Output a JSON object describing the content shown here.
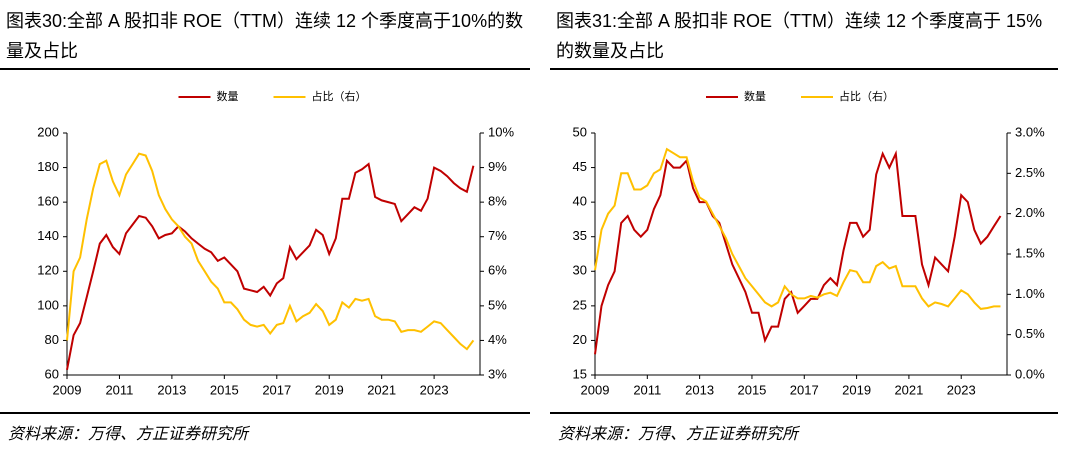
{
  "chart_data": [
    {
      "type": "line",
      "title": "图表30:全部 A 股扣非 ROE（TTM）连续 12 个季度高于10%的数量及占比",
      "source": "资料来源：万得、方正证券研究所",
      "x": [
        2009,
        2009.25,
        2009.5,
        2009.75,
        2010,
        2010.25,
        2010.5,
        2010.75,
        2011,
        2011.25,
        2011.5,
        2011.75,
        2012,
        2012.25,
        2012.5,
        2012.75,
        2013,
        2013.25,
        2013.5,
        2013.75,
        2014,
        2014.25,
        2014.5,
        2014.75,
        2015,
        2015.25,
        2015.5,
        2015.75,
        2016,
        2016.25,
        2016.5,
        2016.75,
        2017,
        2017.25,
        2017.5,
        2017.75,
        2018,
        2018.25,
        2018.5,
        2018.75,
        2019,
        2019.25,
        2019.5,
        2019.75,
        2020,
        2020.25,
        2020.5,
        2020.75,
        2021,
        2021.25,
        2021.5,
        2021.75,
        2022,
        2022.25,
        2022.5,
        2022.75,
        2023,
        2023.25,
        2023.5,
        2023.75,
        2024,
        2024.25,
        2024.5
      ],
      "series": [
        {
          "name": "数量",
          "color": "#c00000",
          "values": [
            63,
            83,
            90,
            105,
            120,
            136,
            141,
            134,
            130,
            142,
            147,
            152,
            151,
            146,
            139,
            141,
            142,
            146,
            143,
            139,
            136,
            133,
            131,
            126,
            128,
            124,
            120,
            110,
            109,
            108,
            111,
            106,
            113,
            116,
            134,
            127,
            131,
            135,
            144,
            141,
            130,
            139,
            162,
            162,
            177,
            179,
            182,
            163,
            161,
            160,
            159,
            149,
            153,
            157,
            155,
            162,
            180,
            178,
            175,
            171,
            168,
            166,
            181
          ]
        },
        {
          "name": "占比（右）",
          "color": "#ffc000",
          "axis": "y2",
          "values": [
            4.0,
            6.0,
            6.4,
            7.5,
            8.4,
            9.1,
            9.2,
            8.6,
            8.2,
            8.8,
            9.1,
            9.4,
            9.35,
            8.9,
            8.2,
            7.8,
            7.5,
            7.3,
            7.0,
            6.8,
            6.3,
            6.0,
            5.7,
            5.5,
            5.1,
            5.1,
            4.9,
            4.6,
            4.45,
            4.4,
            4.45,
            4.2,
            4.45,
            4.5,
            5.0,
            4.55,
            4.7,
            4.8,
            5.05,
            4.85,
            4.45,
            4.6,
            5.1,
            4.95,
            5.2,
            5.15,
            5.2,
            4.7,
            4.6,
            4.6,
            4.55,
            4.25,
            4.3,
            4.3,
            4.25,
            4.4,
            4.55,
            4.5,
            4.3,
            4.1,
            3.9,
            3.75,
            4.0
          ]
        }
      ],
      "xlim": [
        2009,
        2024.75
      ],
      "xticks": [
        2009,
        2011,
        2013,
        2015,
        2017,
        2019,
        2021,
        2023
      ],
      "ylim": [
        60,
        200
      ],
      "yticks": [
        60,
        80,
        100,
        120,
        140,
        160,
        180,
        200
      ],
      "y2lim": [
        3,
        10
      ],
      "y2ticks": [
        {
          "value": 3,
          "label": "3%"
        },
        {
          "value": 4,
          "label": "4%"
        },
        {
          "value": 5,
          "label": "5%"
        },
        {
          "value": 6,
          "label": "6%"
        },
        {
          "value": 7,
          "label": "7%"
        },
        {
          "value": 8,
          "label": "8%"
        },
        {
          "value": 9,
          "label": "9%"
        },
        {
          "value": 10,
          "label": "10%"
        }
      ],
      "legend": "top"
    },
    {
      "type": "line",
      "title": "图表31:全部 A 股扣非 ROE（TTM）连续 12 个季度高于 15%的数量及占比",
      "source": "资料来源：万得、方正证券研究所",
      "x": [
        2009,
        2009.25,
        2009.5,
        2009.75,
        2010,
        2010.25,
        2010.5,
        2010.75,
        2011,
        2011.25,
        2011.5,
        2011.75,
        2012,
        2012.25,
        2012.5,
        2012.75,
        2013,
        2013.25,
        2013.5,
        2013.75,
        2014,
        2014.25,
        2014.5,
        2014.75,
        2015,
        2015.25,
        2015.5,
        2015.75,
        2016,
        2016.25,
        2016.5,
        2016.75,
        2017,
        2017.25,
        2017.5,
        2017.75,
        2018,
        2018.25,
        2018.5,
        2018.75,
        2019,
        2019.25,
        2019.5,
        2019.75,
        2020,
        2020.25,
        2020.5,
        2020.75,
        2021,
        2021.25,
        2021.5,
        2021.75,
        2022,
        2022.25,
        2022.5,
        2022.75,
        2023,
        2023.25,
        2023.5,
        2023.75,
        2024,
        2024.25,
        2024.5
      ],
      "series": [
        {
          "name": "数量",
          "color": "#c00000",
          "values": [
            18,
            25,
            28,
            30,
            37,
            38,
            36,
            35,
            36,
            39,
            41,
            46,
            45,
            45,
            46,
            42,
            40,
            40,
            38,
            37,
            34,
            31,
            29,
            27,
            24,
            24,
            20,
            22,
            22,
            26,
            27,
            24,
            25,
            26,
            26,
            28,
            29,
            28,
            33,
            37,
            37,
            35,
            36,
            44,
            47,
            45,
            47,
            38,
            38,
            38,
            31,
            28,
            32,
            31,
            30,
            35,
            41,
            40,
            36,
            34,
            35,
            36.5,
            38
          ]
        },
        {
          "name": "占比（右）",
          "color": "#ffc000",
          "axis": "y2",
          "values": [
            1.3,
            1.8,
            2.0,
            2.1,
            2.5,
            2.5,
            2.3,
            2.3,
            2.35,
            2.5,
            2.55,
            2.8,
            2.75,
            2.7,
            2.7,
            2.4,
            2.2,
            2.15,
            2.0,
            1.85,
            1.7,
            1.5,
            1.35,
            1.2,
            1.1,
            1.0,
            0.9,
            0.85,
            0.9,
            1.1,
            1.0,
            0.95,
            0.95,
            0.98,
            0.96,
            1.0,
            1.02,
            0.98,
            1.15,
            1.3,
            1.28,
            1.15,
            1.15,
            1.35,
            1.4,
            1.32,
            1.35,
            1.1,
            1.1,
            1.1,
            0.95,
            0.85,
            0.9,
            0.88,
            0.85,
            0.95,
            1.05,
            1.0,
            0.9,
            0.82,
            0.83,
            0.85,
            0.85
          ]
        }
      ],
      "xlim": [
        2009,
        2024.75
      ],
      "xticks": [
        2009,
        2011,
        2013,
        2015,
        2017,
        2019,
        2021,
        2023
      ],
      "ylim": [
        15,
        50
      ],
      "yticks": [
        15,
        20,
        25,
        30,
        35,
        40,
        45,
        50
      ],
      "y2lim": [
        0,
        3
      ],
      "y2ticks": [
        {
          "value": 0,
          "label": "0.0%"
        },
        {
          "value": 0.5,
          "label": "0.5%"
        },
        {
          "value": 1,
          "label": "1.0%"
        },
        {
          "value": 1.5,
          "label": "1.5%"
        },
        {
          "value": 2,
          "label": "2.0%"
        },
        {
          "value": 2.5,
          "label": "2.5%"
        },
        {
          "value": 3,
          "label": "3.0%"
        }
      ],
      "legend": "top"
    }
  ]
}
